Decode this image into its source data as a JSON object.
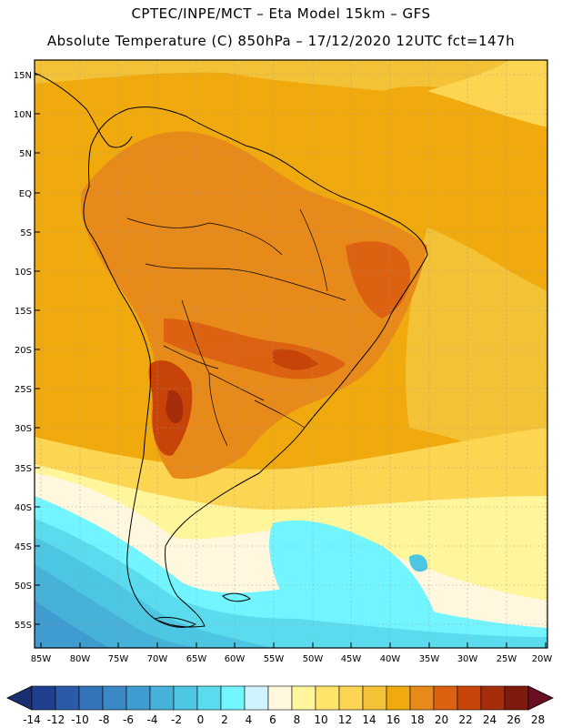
{
  "header": {
    "line1": "CPTEC/INPE/MCT –  Eta Model 15km – GFS",
    "line2": "Absolute Temperature (C) 850hPa – 17/12/2020 12UTC fct=147h"
  },
  "axes": {
    "lat_labels": [
      "15N",
      "10N",
      "5N",
      "EQ",
      "5S",
      "10S",
      "15S",
      "20S",
      "25S",
      "30S",
      "35S",
      "40S",
      "45S",
      "50S",
      "55S"
    ],
    "lat_values": [
      15,
      10,
      5,
      0,
      -5,
      -10,
      -15,
      -20,
      -25,
      -30,
      -35,
      -40,
      -45,
      -50,
      -55
    ],
    "lon_labels": [
      "85W",
      "80W",
      "75W",
      "70W",
      "65W",
      "60W",
      "55W",
      "50W",
      "45W",
      "40W",
      "35W",
      "30W",
      "25W",
      "20W"
    ],
    "lon_values": [
      -85,
      -80,
      -75,
      -70,
      -65,
      -60,
      -55,
      -50,
      -45,
      -40,
      -35,
      -30,
      -25,
      -20
    ]
  },
  "colorbar": {
    "labels": [
      "-14",
      "-12",
      "-10",
      "-8",
      "-6",
      "-4",
      "-2",
      "0",
      "2",
      "4",
      "6",
      "8",
      "10",
      "12",
      "14",
      "16",
      "18",
      "20",
      "22",
      "24",
      "26",
      "28"
    ],
    "colors": [
      "#1f3f8f",
      "#2a5aa8",
      "#3374b9",
      "#3a88c5",
      "#3f9cd0",
      "#46b1d9",
      "#4cc6e2",
      "#5adcee",
      "#72f5ff",
      "#d0f4ff",
      "#fff7de",
      "#fff59a",
      "#ffe36a",
      "#fcd553",
      "#f4c236",
      "#f0aa0e",
      "#e88a1a",
      "#dc6110",
      "#c84308",
      "#a52d0c",
      "#7e1b0d"
    ],
    "under_color": "#1a2f70",
    "over_color": "#6a0e24"
  },
  "map": {
    "ocean_warm": "#f0aa0e",
    "land_base": "#e88a1a",
    "hot_core": "#c84308",
    "cold_south": "#4cc6e2"
  }
}
